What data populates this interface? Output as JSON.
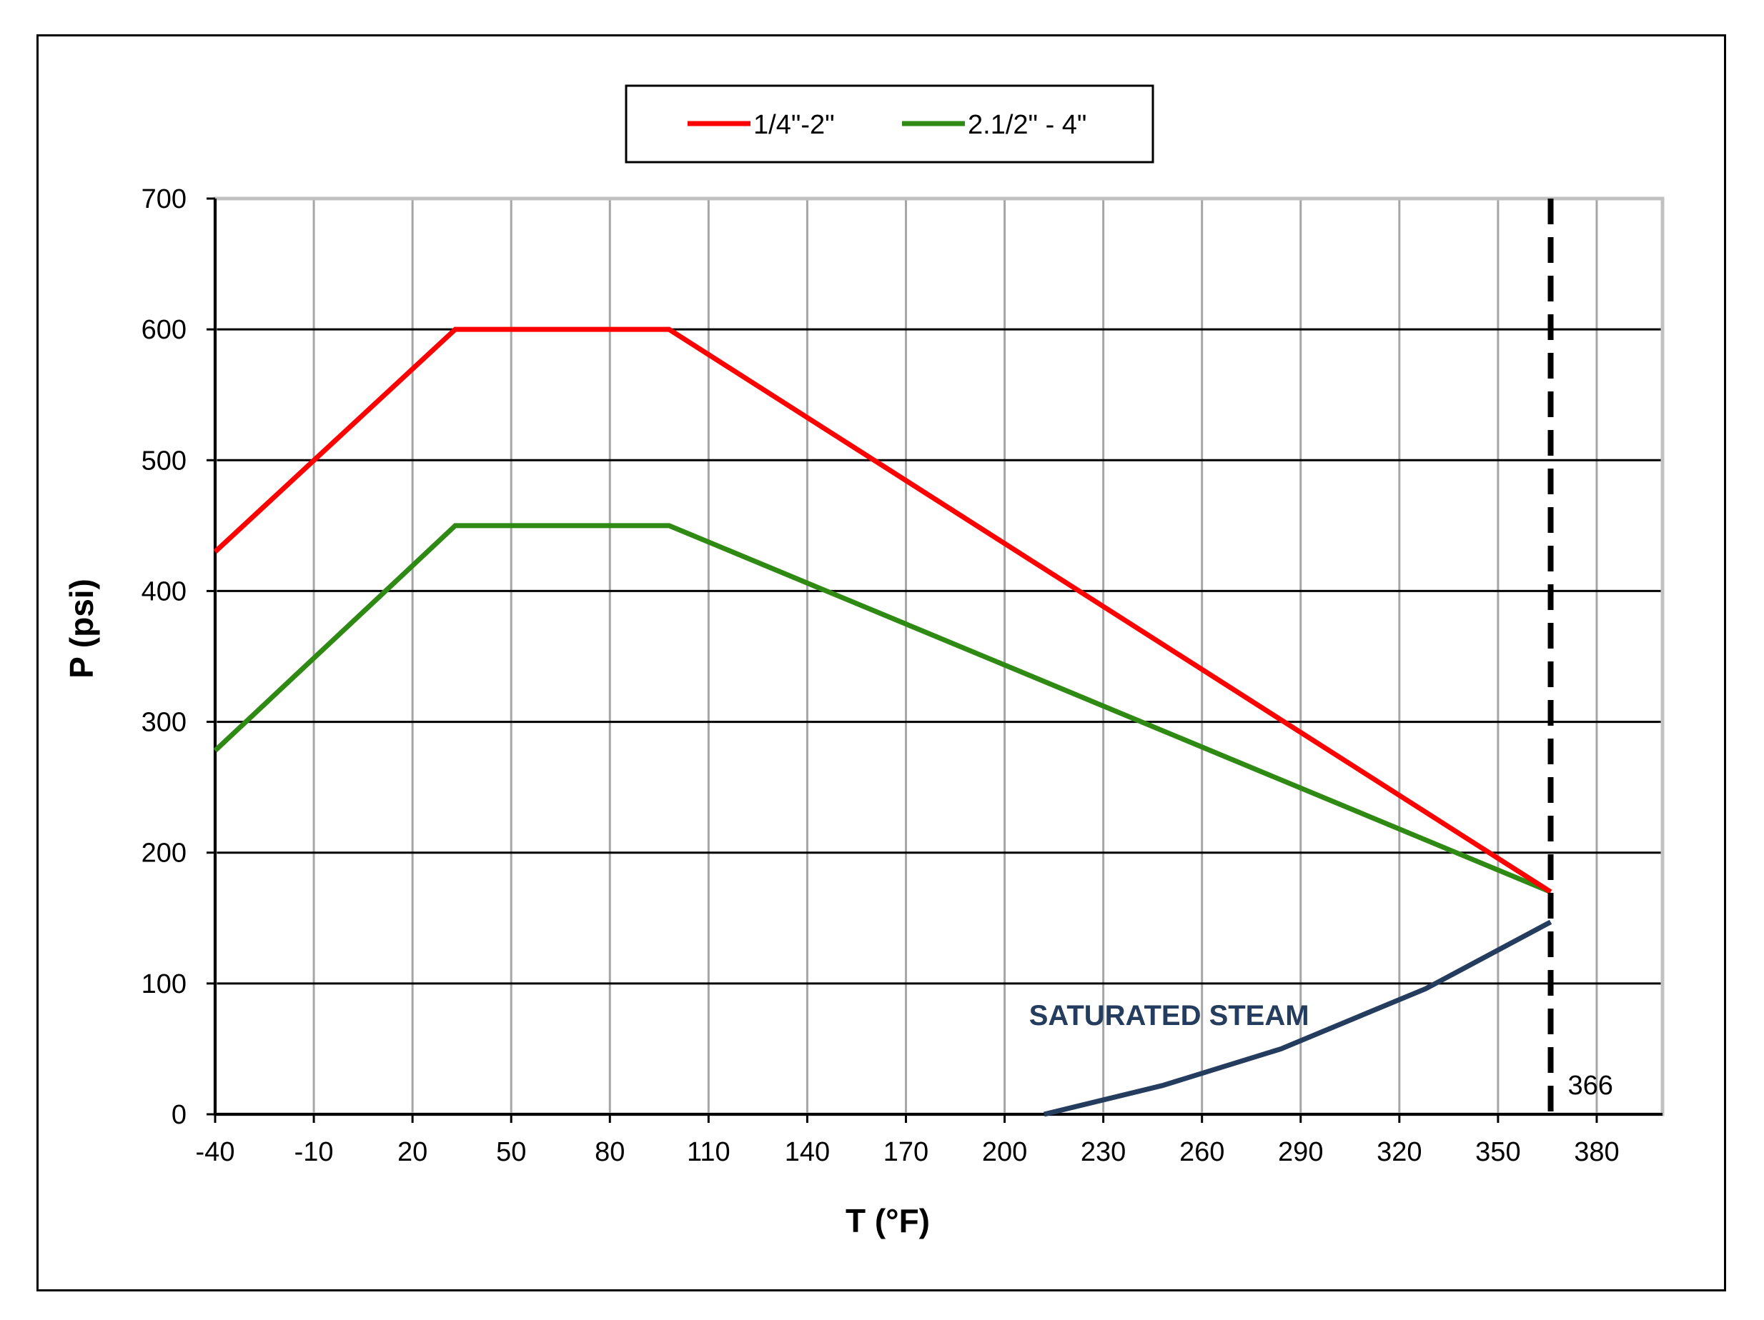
{
  "chart_data": {
    "type": "line",
    "title": "",
    "xlabel": "T (°F)",
    "ylabel": "P (psi)",
    "xlim": [
      -40,
      400
    ],
    "ylim": [
      0,
      700
    ],
    "x_ticks": [
      "-40",
      "-10",
      "20",
      "50",
      "80",
      "110",
      "140",
      "170",
      "200",
      "230",
      "260",
      "290",
      "320",
      "350",
      "380"
    ],
    "y_ticks": [
      "0",
      "100",
      "200",
      "300",
      "400",
      "500",
      "600",
      "700"
    ],
    "grid": true,
    "legend_position": "top-center",
    "series": [
      {
        "name": "1/4\"-2\"",
        "color": "#ff0000",
        "points": [
          [
            -40,
            430
          ],
          [
            33,
            600
          ],
          [
            98,
            600
          ],
          [
            366,
            170
          ]
        ]
      },
      {
        "name": "2.1/2\" - 4\"",
        "color": "#2f8a13",
        "points": [
          [
            -40,
            278
          ],
          [
            33,
            450
          ],
          [
            98,
            450
          ],
          [
            366,
            170
          ]
        ]
      },
      {
        "name": "",
        "color": "#243c5e",
        "points": [
          [
            212,
            0
          ],
          [
            248,
            22
          ],
          [
            284,
            50
          ],
          [
            328,
            96
          ],
          [
            366,
            147
          ]
        ]
      }
    ],
    "annotations": [
      {
        "text": "SATURATED STEAM",
        "x": 250,
        "y": 76,
        "color": "#243c5e"
      },
      {
        "text": "366",
        "x": 366,
        "y": 0
      }
    ],
    "vertical_line": {
      "x": 366,
      "style": "dashed",
      "color": "#000000"
    }
  }
}
